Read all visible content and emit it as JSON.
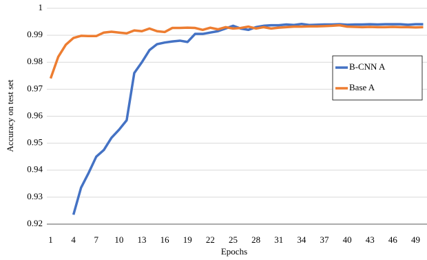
{
  "chart_data": {
    "type": "line",
    "x_label": "Epochs",
    "y_label": "Accuracy on test set",
    "categories": [
      1,
      null,
      null,
      4,
      null,
      null,
      7,
      null,
      null,
      10,
      null,
      null,
      13,
      null,
      null,
      16,
      null,
      null,
      19,
      null,
      null,
      22,
      null,
      null,
      25,
      null,
      null,
      28,
      null,
      null,
      31,
      null,
      null,
      34,
      null,
      null,
      37,
      null,
      null,
      40,
      null,
      null,
      43,
      null,
      null,
      46,
      null,
      null,
      49,
      null
    ],
    "series": [
      {
        "name": "B-CNN A",
        "color": "#4472c4",
        "values": [
          null,
          null,
          null,
          0.9235,
          0.9335,
          0.939,
          0.945,
          0.9475,
          0.952,
          0.955,
          0.9585,
          0.976,
          0.98,
          0.9845,
          0.9867,
          0.9873,
          0.9877,
          0.988,
          0.9875,
          0.9905,
          0.9905,
          0.991,
          0.9915,
          0.9925,
          0.9935,
          0.9925,
          0.992,
          0.993,
          0.9935,
          0.9937,
          0.9937,
          0.994,
          0.9938,
          0.9942,
          0.9938,
          0.9939,
          0.994,
          0.994,
          0.9941,
          0.9939,
          0.994,
          0.994,
          0.9941,
          0.994,
          0.9941,
          0.9941,
          0.9941,
          0.9939,
          0.9941,
          0.9941
        ]
      },
      {
        "name": "Base A",
        "color": "#ed7d31",
        "values": [
          0.974,
          0.982,
          0.9865,
          0.989,
          0.9898,
          0.9897,
          0.9897,
          0.991,
          0.9913,
          0.991,
          0.9907,
          0.9918,
          0.9915,
          0.9925,
          0.9915,
          0.9912,
          0.9927,
          0.9927,
          0.9928,
          0.9927,
          0.992,
          0.9928,
          0.9922,
          0.993,
          0.9925,
          0.9927,
          0.9932,
          0.9925,
          0.993,
          0.9925,
          0.9928,
          0.993,
          0.9932,
          0.9932,
          0.9933,
          0.9933,
          0.9934,
          0.9935,
          0.9937,
          0.9932,
          0.9931,
          0.993,
          0.9931,
          0.993,
          0.993,
          0.9931,
          0.993,
          0.993,
          0.9929,
          0.993
        ]
      }
    ],
    "ylim": [
      0.92,
      1
    ],
    "yticks": [
      0.92,
      0.93,
      0.94,
      0.95,
      0.96,
      0.97,
      0.98,
      0.99,
      1
    ],
    "grid": true,
    "legend": "right"
  }
}
